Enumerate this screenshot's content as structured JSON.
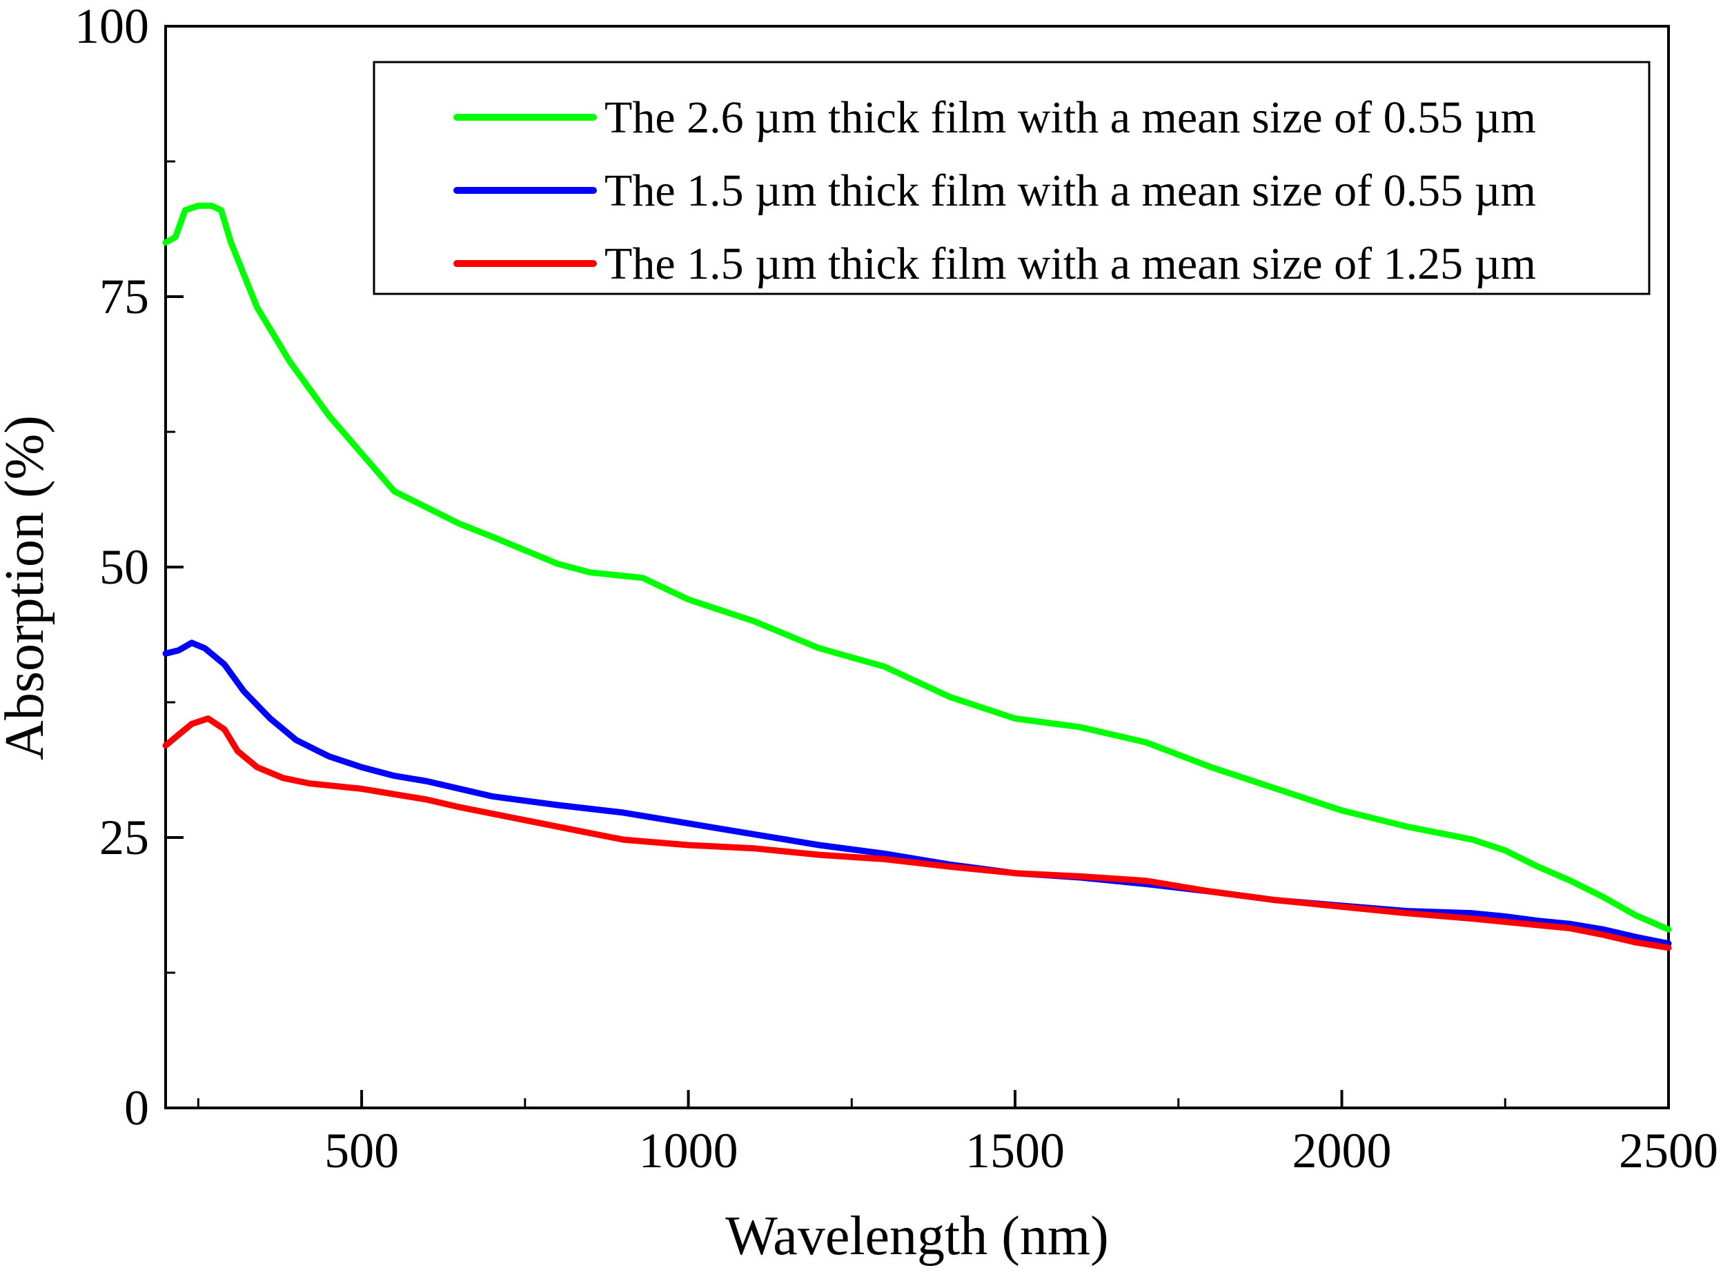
{
  "chart_data": {
    "type": "line",
    "title": "",
    "xlabel": "Wavelength (nm)",
    "ylabel": "Absorption (%)",
    "xlim": [
      200,
      2500
    ],
    "ylim": [
      0,
      100
    ],
    "xticks": [
      500,
      1000,
      1500,
      2000,
      2500
    ],
    "xticks_minor": [
      250,
      750,
      1250,
      1750,
      2250
    ],
    "yticks": [
      0,
      25,
      50,
      75,
      100
    ],
    "yticks_minor": [
      12.5,
      37.5,
      62.5,
      87.5
    ],
    "grid": false,
    "legend_position": "top-right",
    "series": [
      {
        "name": "The 2.6 µm thick film with a mean size of 0.55 µm",
        "color": "#00ff00",
        "points": [
          [
            200,
            80
          ],
          [
            215,
            80.5
          ],
          [
            230,
            83
          ],
          [
            250,
            83.4
          ],
          [
            270,
            83.4
          ],
          [
            285,
            83
          ],
          [
            300,
            80
          ],
          [
            320,
            77
          ],
          [
            340,
            74
          ],
          [
            370,
            71
          ],
          [
            390,
            69
          ],
          [
            420,
            66.5
          ],
          [
            450,
            64
          ],
          [
            500,
            60.5
          ],
          [
            550,
            57
          ],
          [
            600,
            55.5
          ],
          [
            650,
            54
          ],
          [
            700,
            52.8
          ],
          [
            800,
            50.3
          ],
          [
            850,
            49.5
          ],
          [
            930,
            49
          ],
          [
            1000,
            47
          ],
          [
            1100,
            45
          ],
          [
            1200,
            42.5
          ],
          [
            1300,
            40.8
          ],
          [
            1400,
            38
          ],
          [
            1500,
            36
          ],
          [
            1600,
            35.2
          ],
          [
            1700,
            33.8
          ],
          [
            1800,
            31.5
          ],
          [
            1900,
            29.5
          ],
          [
            2000,
            27.5
          ],
          [
            2100,
            26
          ],
          [
            2200,
            24.8
          ],
          [
            2250,
            23.8
          ],
          [
            2300,
            22.3
          ],
          [
            2350,
            21
          ],
          [
            2400,
            19.5
          ],
          [
            2450,
            17.8
          ],
          [
            2500,
            16.5
          ]
        ]
      },
      {
        "name": "The 1.5 µm thick film with a mean size of 0.55 µm",
        "color": "#0000ff",
        "points": [
          [
            200,
            42
          ],
          [
            220,
            42.3
          ],
          [
            240,
            43
          ],
          [
            260,
            42.5
          ],
          [
            290,
            41
          ],
          [
            320,
            38.5
          ],
          [
            360,
            36
          ],
          [
            400,
            34
          ],
          [
            450,
            32.5
          ],
          [
            500,
            31.5
          ],
          [
            550,
            30.7
          ],
          [
            600,
            30.2
          ],
          [
            700,
            28.8
          ],
          [
            800,
            28
          ],
          [
            900,
            27.3
          ],
          [
            1000,
            26.3
          ],
          [
            1100,
            25.3
          ],
          [
            1200,
            24.3
          ],
          [
            1300,
            23.5
          ],
          [
            1400,
            22.5
          ],
          [
            1500,
            21.7
          ],
          [
            1600,
            21.3
          ],
          [
            1700,
            20.7
          ],
          [
            1800,
            20
          ],
          [
            1900,
            19.2
          ],
          [
            2000,
            18.7
          ],
          [
            2100,
            18.2
          ],
          [
            2200,
            18
          ],
          [
            2250,
            17.7
          ],
          [
            2300,
            17.3
          ],
          [
            2350,
            17
          ],
          [
            2400,
            16.5
          ],
          [
            2450,
            15.8
          ],
          [
            2500,
            15.2
          ]
        ]
      },
      {
        "name": "The 1.5 µm thick film with a mean size of 1.25 µm",
        "color": "#ff0000",
        "points": [
          [
            200,
            33.5
          ],
          [
            220,
            34.5
          ],
          [
            240,
            35.5
          ],
          [
            265,
            36
          ],
          [
            290,
            35
          ],
          [
            310,
            33
          ],
          [
            340,
            31.5
          ],
          [
            380,
            30.5
          ],
          [
            420,
            30
          ],
          [
            500,
            29.5
          ],
          [
            550,
            29
          ],
          [
            600,
            28.5
          ],
          [
            650,
            27.8
          ],
          [
            700,
            27.2
          ],
          [
            800,
            26
          ],
          [
            900,
            24.8
          ],
          [
            1000,
            24.3
          ],
          [
            1100,
            24
          ],
          [
            1200,
            23.4
          ],
          [
            1300,
            23
          ],
          [
            1400,
            22.3
          ],
          [
            1500,
            21.7
          ],
          [
            1600,
            21.4
          ],
          [
            1700,
            21
          ],
          [
            1800,
            20
          ],
          [
            1900,
            19.2
          ],
          [
            2000,
            18.6
          ],
          [
            2100,
            18
          ],
          [
            2200,
            17.5
          ],
          [
            2250,
            17.2
          ],
          [
            2300,
            16.9
          ],
          [
            2350,
            16.6
          ],
          [
            2400,
            16
          ],
          [
            2450,
            15.3
          ],
          [
            2500,
            14.8
          ]
        ]
      }
    ]
  }
}
